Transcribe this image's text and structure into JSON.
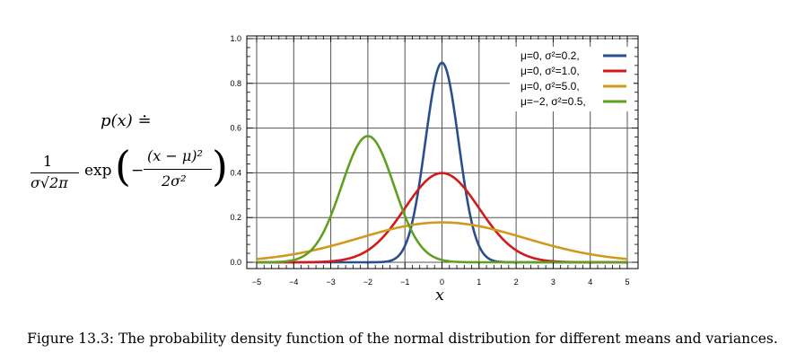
{
  "formula": {
    "lhs": "p(x) ≐",
    "frac_num": "1",
    "frac_den": "σ√2π",
    "exp": "exp",
    "paren_left": "(",
    "minus": "−",
    "inner_num": "(x − μ)²",
    "inner_den": "2σ²",
    "paren_right": ")"
  },
  "caption": "Figure 13.3: The probability density function of the normal distribution for different means and variances.",
  "chart_data": {
    "type": "line",
    "title": "",
    "xlabel": "x",
    "ylabel": "",
    "xlim": [
      -5,
      5
    ],
    "ylim": [
      0,
      1.0
    ],
    "xticks": [
      "−5",
      "−4",
      "−3",
      "−2",
      "−1",
      "0",
      "1",
      "2",
      "3",
      "4",
      "5"
    ],
    "yticks": [
      "0.0",
      "0.2",
      "0.4",
      "0.6",
      "0.8",
      "1.0"
    ],
    "grid": true,
    "legend_position": "top-right",
    "series": [
      {
        "name": "μ=0,   σ²=0.2,",
        "mu": 0,
        "variance": 0.2,
        "color": "#2a4f8f"
      },
      {
        "name": "μ=0,   σ²=1.0,",
        "mu": 0,
        "variance": 1.0,
        "color": "#d11a1a"
      },
      {
        "name": "μ=0,   σ²=5.0,",
        "mu": 0,
        "variance": 5.0,
        "color": "#d19a1e"
      },
      {
        "name": "μ=−2, σ²=0.5,",
        "mu": -2,
        "variance": 0.5,
        "color": "#5fa021"
      }
    ]
  }
}
